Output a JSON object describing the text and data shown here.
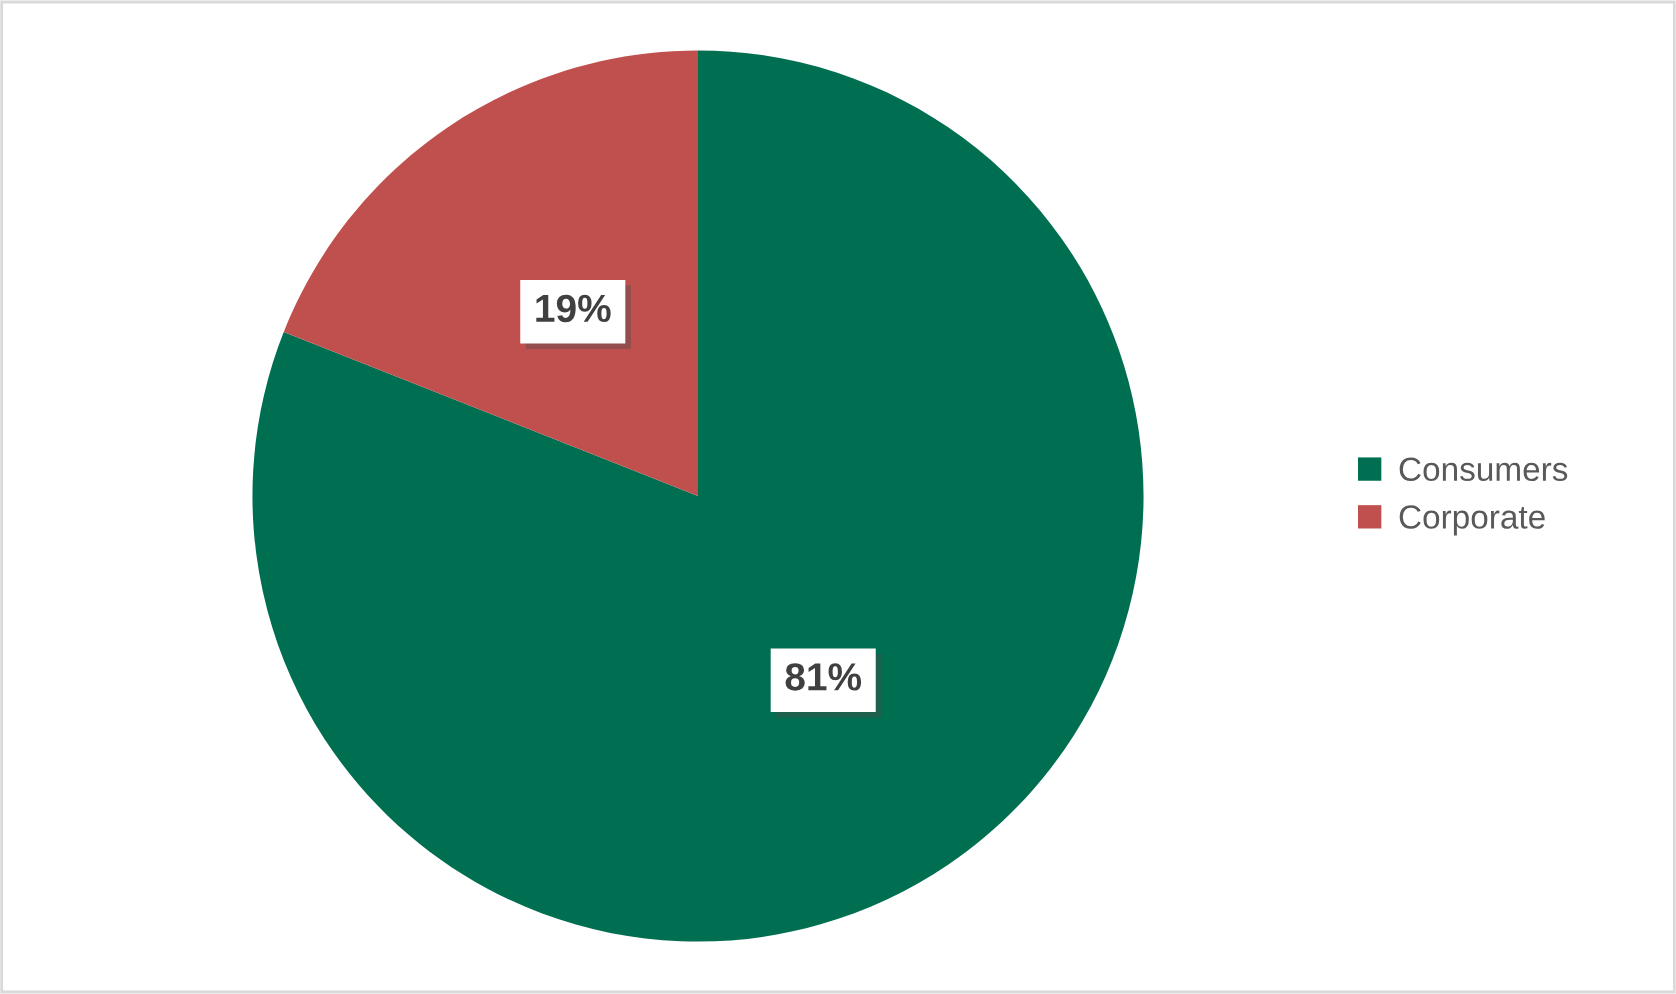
{
  "chart_data": {
    "type": "pie",
    "categories": [
      "Consumers",
      "Corporate"
    ],
    "values": [
      81,
      19
    ],
    "colors": [
      "#006f51",
      "#c0504d"
    ],
    "value_labels": [
      "81%",
      "19%"
    ],
    "legend": "right"
  }
}
